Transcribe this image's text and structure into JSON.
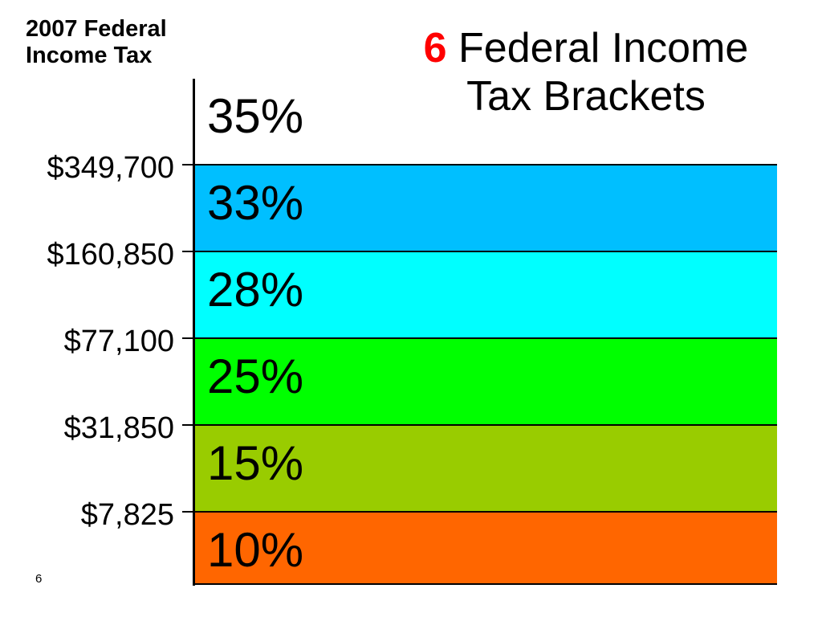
{
  "corner_label": {
    "line1": "2007 Federal",
    "line2": "Income Tax"
  },
  "title": {
    "number": "6",
    "line1": "Federal Income",
    "line2": "Tax Brackets"
  },
  "brackets": [
    {
      "rate": "35%",
      "color": "#ffffff"
    },
    {
      "rate": "33%",
      "color": "#00bfff"
    },
    {
      "rate": "28%",
      "color": "#00ffff"
    },
    {
      "rate": "25%",
      "color": "#00ff00"
    },
    {
      "rate": "15%",
      "color": "#99cc00"
    },
    {
      "rate": "10%",
      "color": "#ff6600"
    }
  ],
  "thresholds": [
    "$349,700",
    "$160,850",
    "$77,100",
    "$31,850",
    "$7,825"
  ],
  "slide_number": "6"
}
